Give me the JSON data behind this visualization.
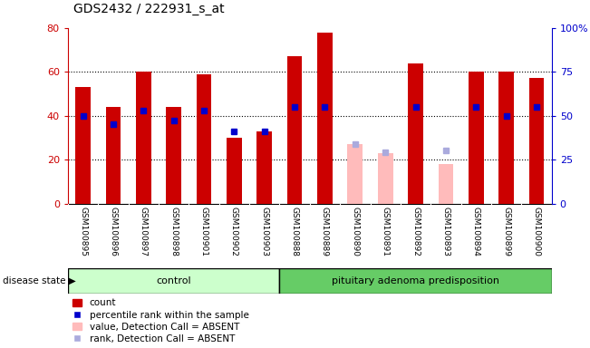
{
  "title": "GDS2432 / 222931_s_at",
  "samples": [
    "GSM100895",
    "GSM100896",
    "GSM100897",
    "GSM100898",
    "GSM100901",
    "GSM100902",
    "GSM100903",
    "GSM100888",
    "GSM100889",
    "GSM100890",
    "GSM100891",
    "GSM100892",
    "GSM100893",
    "GSM100894",
    "GSM100899",
    "GSM100900"
  ],
  "red_values": [
    53,
    44,
    60,
    44,
    59,
    30,
    33,
    67,
    78,
    null,
    null,
    64,
    null,
    60,
    60,
    57
  ],
  "blue_values": [
    50,
    45,
    53,
    47,
    53,
    41,
    41,
    55,
    55,
    null,
    null,
    55,
    null,
    55,
    50,
    55
  ],
  "pink_values": [
    null,
    null,
    null,
    null,
    null,
    null,
    null,
    null,
    null,
    27,
    23,
    null,
    18,
    null,
    null,
    null
  ],
  "lavender_values": [
    null,
    null,
    null,
    null,
    null,
    null,
    null,
    null,
    null,
    34,
    29,
    null,
    30,
    null,
    null,
    null
  ],
  "left_ylim": [
    0,
    80
  ],
  "right_ylim": [
    0,
    100
  ],
  "left_yticks": [
    0,
    20,
    40,
    60,
    80
  ],
  "right_yticks": [
    0,
    25,
    50,
    75,
    100
  ],
  "right_yticklabels": [
    "0",
    "25",
    "50",
    "75",
    "100%"
  ],
  "left_ycolor": "#cc0000",
  "right_ycolor": "#0000cc",
  "control_color": "#ccffcc",
  "pituitary_color": "#66cc66",
  "bar_width": 0.5,
  "control_count": 7,
  "pituitary_count": 9,
  "n_samples": 16
}
